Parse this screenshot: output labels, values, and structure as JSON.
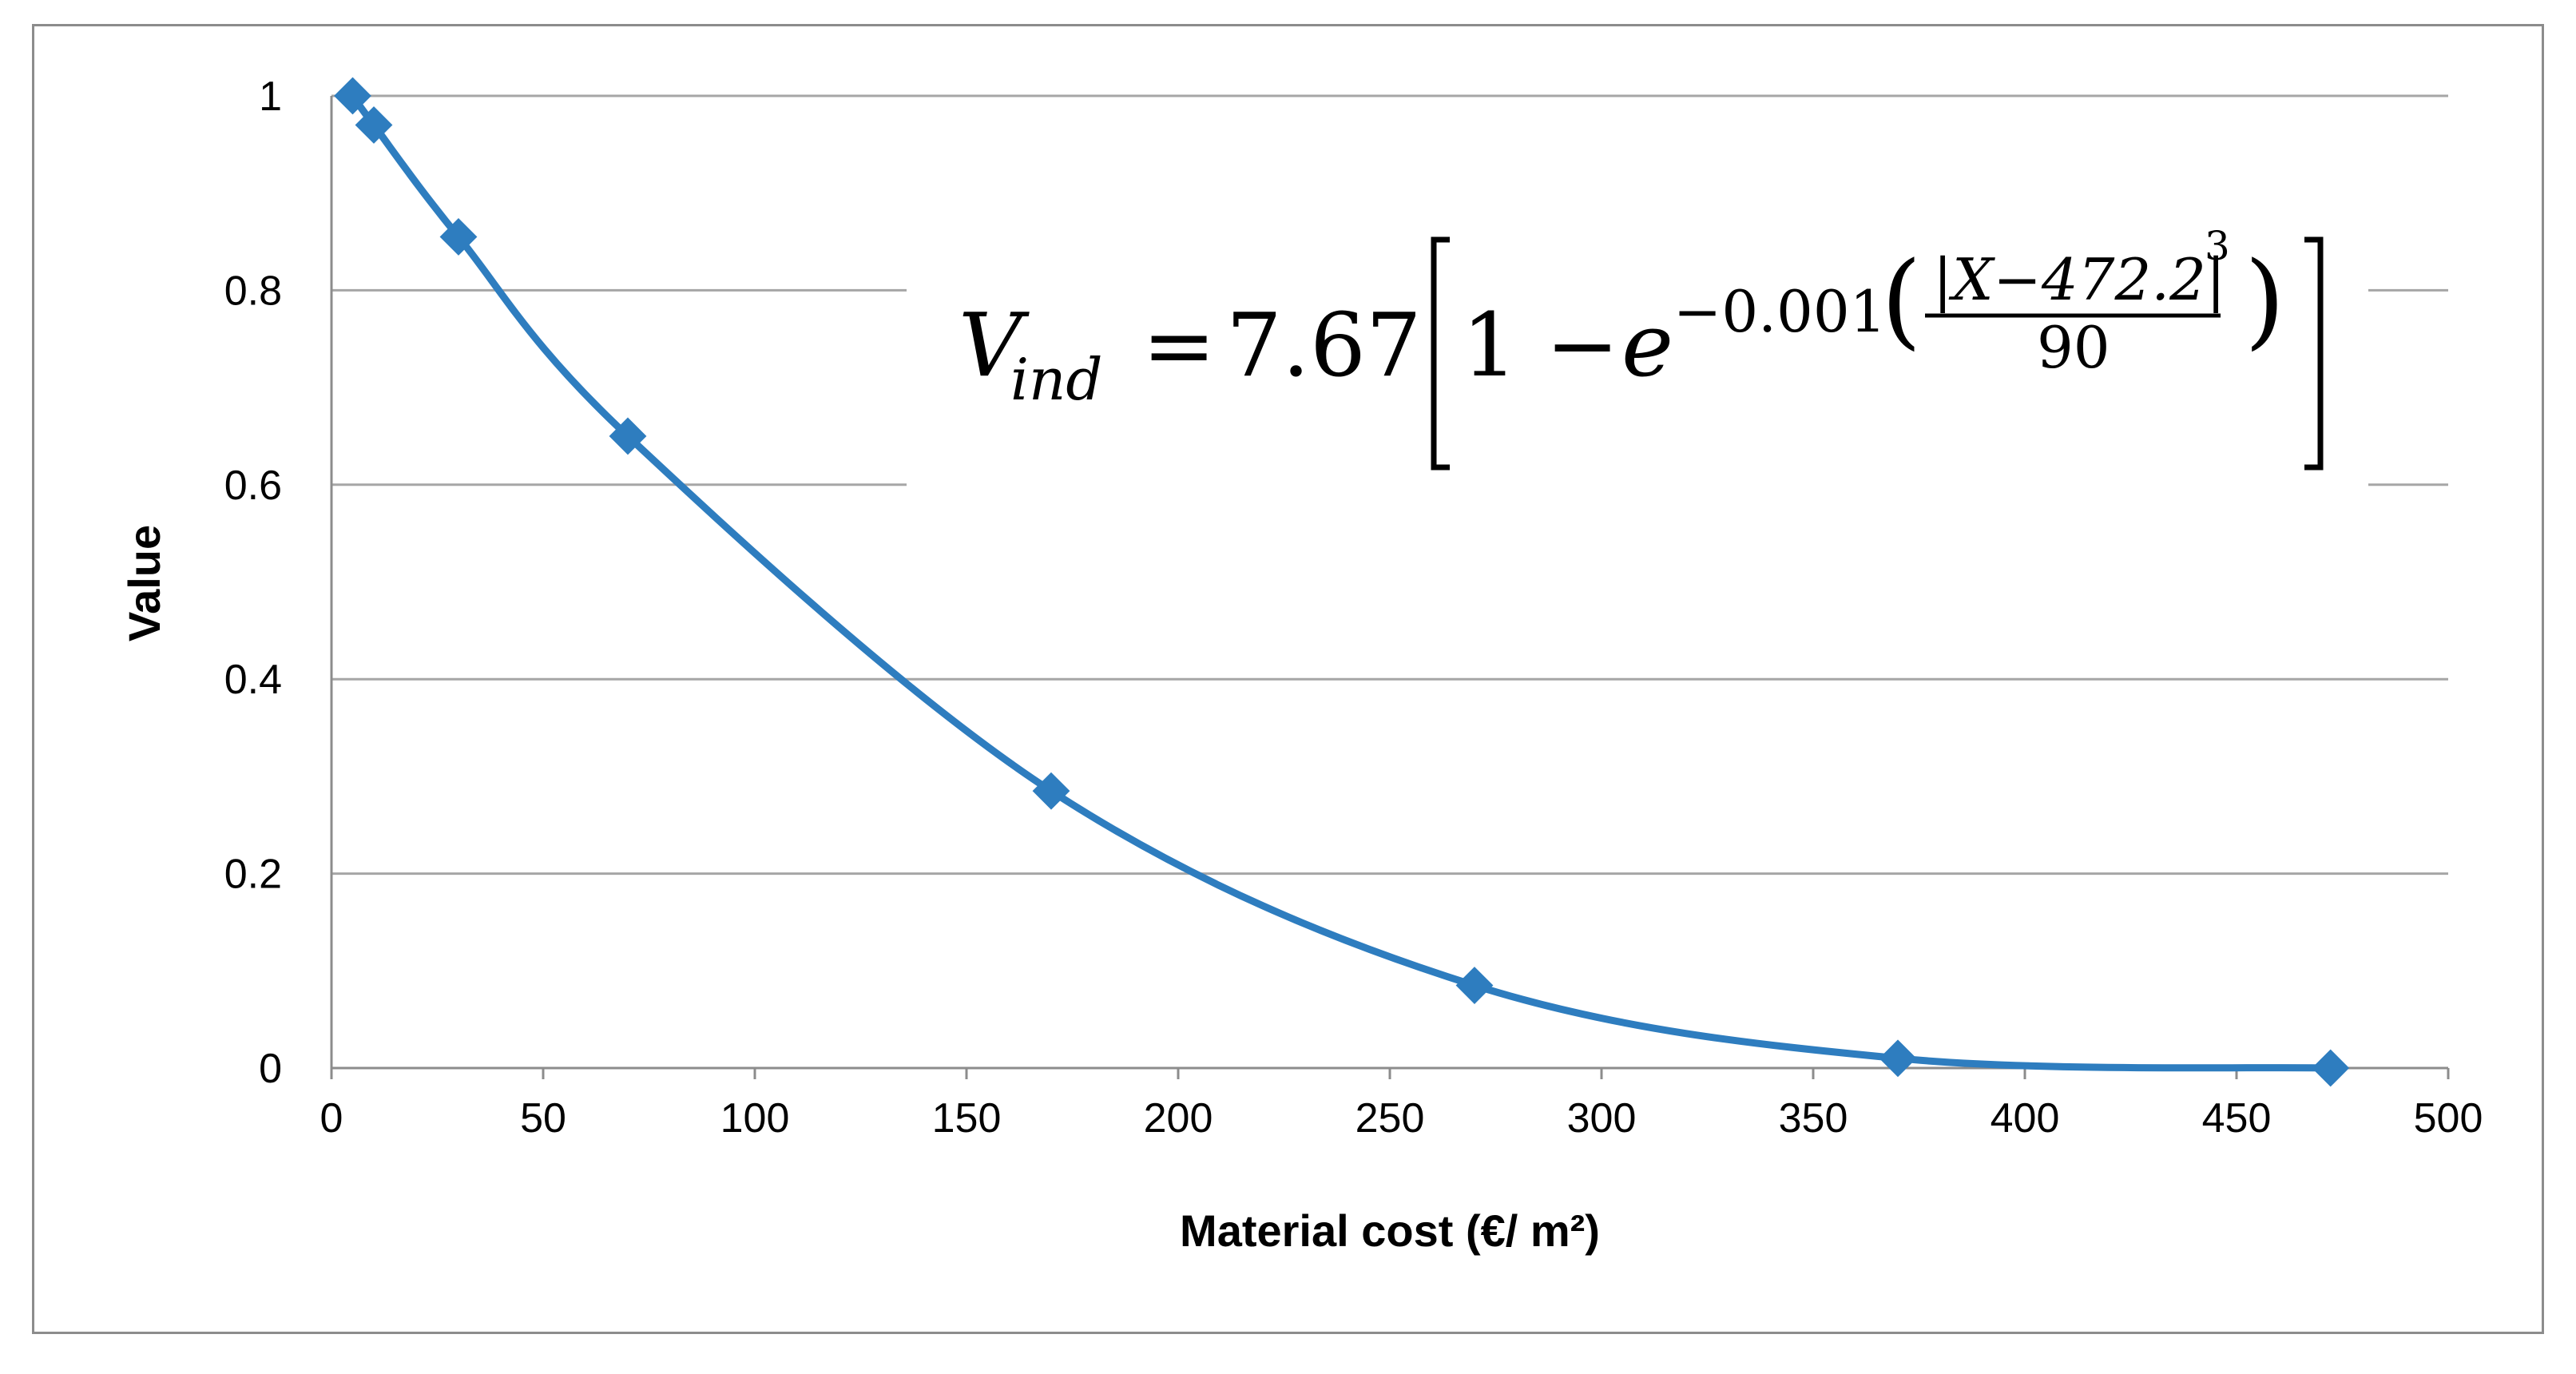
{
  "chart_data": {
    "type": "line",
    "title": "",
    "xlabel": "Material cost (€/ m²)",
    "ylabel": "Value",
    "xlim": [
      0,
      500
    ],
    "ylim": [
      0,
      1
    ],
    "x_ticks": [
      "0",
      "50",
      "100",
      "150",
      "200",
      "250",
      "300",
      "350",
      "400",
      "450",
      "500"
    ],
    "y_ticks": [
      "0",
      "0.2",
      "0.4",
      "0.6",
      "0.8",
      "1"
    ],
    "grid": "horizontal",
    "smooth": true,
    "marker": "diamond",
    "series": [
      {
        "name": "Value",
        "color": "#2e7dbf",
        "x": [
          5,
          10,
          30,
          70,
          170,
          270,
          370,
          472.2
        ],
        "values": [
          1.0,
          0.97,
          0.855,
          0.65,
          0.285,
          0.085,
          0.01,
          0.0
        ]
      }
    ],
    "annotation": {
      "lhs_var": "V",
      "lhs_sub": "ind",
      "eq": "=",
      "coef": "7.67",
      "one_minus": "1 −",
      "base": "e",
      "exp_coef": "−0.001",
      "numerator": "|X−472.2|",
      "numerator_power": "3",
      "denominator": "90"
    }
  }
}
